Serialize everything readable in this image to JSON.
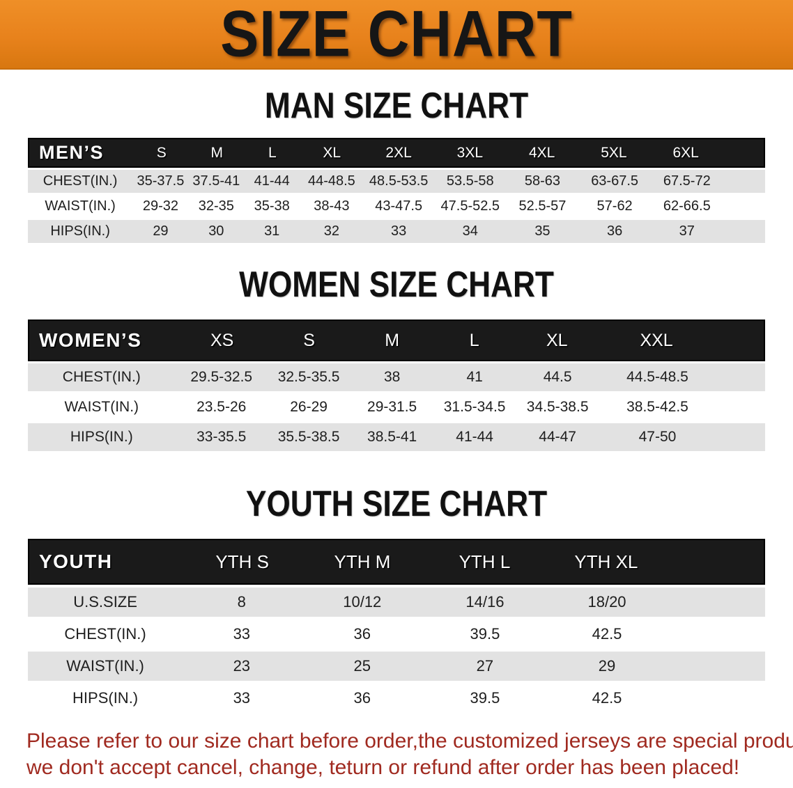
{
  "banner": {
    "title": "SIZE CHART"
  },
  "men_section": {
    "heading": "MAN SIZE CHART",
    "table": {
      "header": [
        "MEN’S",
        "S",
        "M",
        "L",
        "XL",
        "2XL",
        "3XL",
        "4XL",
        "5XL",
        "6XL"
      ],
      "rows": [
        {
          "label": "CHEST(IN.)",
          "values": [
            "35-37.5",
            "37.5-41",
            "41-44",
            "44-48.5",
            "48.5-53.5",
            "53.5-58",
            "58-63",
            "63-67.5",
            "67.5-72"
          ]
        },
        {
          "label": "WAIST(IN.)",
          "values": [
            "29-32",
            "32-35",
            "35-38",
            "38-43",
            "43-47.5",
            "47.5-52.5",
            "52.5-57",
            "57-62",
            "62-66.5"
          ]
        },
        {
          "label": "HIPS(IN.)",
          "values": [
            "29",
            "30",
            "31",
            "32",
            "33",
            "34",
            "35",
            "36",
            "37"
          ]
        }
      ]
    }
  },
  "women_section": {
    "heading": "WOMEN SIZE CHART",
    "table": {
      "header": [
        "WOMEN’S",
        "XS",
        "S",
        "M",
        "L",
        "XL",
        "XXL"
      ],
      "rows": [
        {
          "label": "CHEST(IN.)",
          "values": [
            "29.5-32.5",
            "32.5-35.5",
            "38",
            "41",
            "44.5",
            "44.5-48.5"
          ]
        },
        {
          "label": "WAIST(IN.)",
          "values": [
            "23.5-26",
            "26-29",
            "29-31.5",
            "31.5-34.5",
            "34.5-38.5",
            "38.5-42.5"
          ]
        },
        {
          "label": "HIPS(IN.)",
          "values": [
            "33-35.5",
            "35.5-38.5",
            "38.5-41",
            "41-44",
            "44-47",
            "47-50"
          ]
        }
      ]
    }
  },
  "youth_section": {
    "heading": "YOUTH SIZE CHART",
    "table": {
      "header": [
        "YOUTH",
        "YTH S",
        "YTH M",
        "YTH L",
        "YTH XL"
      ],
      "rows": [
        {
          "label": "U.S.SIZE",
          "values": [
            "8",
            "10/12",
            "14/16",
            "18/20"
          ]
        },
        {
          "label": "CHEST(IN.)",
          "values": [
            "33",
            "36",
            "39.5",
            "42.5"
          ]
        },
        {
          "label": "WAIST(IN.)",
          "values": [
            "23",
            "25",
            "27",
            "29"
          ]
        },
        {
          "label": "HIPS(IN.)",
          "values": [
            "33",
            "36",
            "39.5",
            "42.5"
          ]
        }
      ]
    }
  },
  "disclaimer": {
    "line1": "Please refer to our size chart before order,the customized jerseys are special products,",
    "line2": "we don't accept cancel, change, teturn or refund after order has been placed!"
  },
  "colors": {
    "banner_bg": "#E8821C",
    "banner_text": "#161616",
    "heading_ink": "#111111",
    "header_bar": "#1A1A1A",
    "header_text": "#FFFFFF",
    "row_stripe": "#E2E2E2",
    "cell_text": "#1E1E1E",
    "disclaimer_red": "#A02A20"
  }
}
